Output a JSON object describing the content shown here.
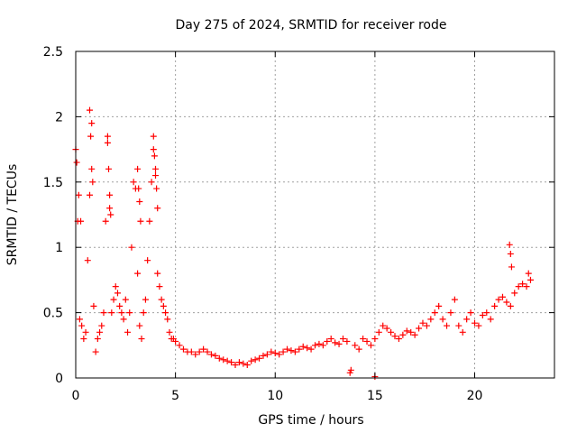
{
  "chart_data": {
    "type": "scatter",
    "title": "Day 275 of 2024, SRMTID for receiver rode",
    "xlabel": "GPS time / hours",
    "ylabel": "SRMTID / TECUs",
    "xlim": [
      0,
      24
    ],
    "ylim": [
      0,
      2.5
    ],
    "xticks": [
      0,
      5,
      10,
      15,
      20
    ],
    "xtick_labels": [
      "0",
      "5",
      "10",
      "15",
      "20"
    ],
    "yticks": [
      0,
      0.5,
      1,
      1.5,
      2,
      2.5
    ],
    "ytick_labels": [
      "0",
      "0.5",
      "1",
      "1.5",
      "2",
      "2.5"
    ],
    "grid": true,
    "marker": "+",
    "color": "#ff0000",
    "series": [
      {
        "name": "SRMTID",
        "x": [
          0.0,
          0.1,
          0.2,
          0.3,
          0.4,
          0.5,
          0.6,
          0.7,
          0.8,
          0.9,
          1.0,
          1.1,
          1.2,
          1.3,
          1.4,
          1.5,
          1.6,
          1.7,
          1.8,
          1.9,
          2.0,
          2.1,
          2.2,
          2.3,
          2.4,
          2.5,
          2.6,
          2.7,
          2.8,
          2.9,
          3.0,
          3.1,
          3.2,
          3.3,
          3.4,
          3.5,
          3.6,
          3.7,
          3.8,
          3.9,
          4.0,
          4.1,
          4.2,
          4.3,
          4.4,
          4.5,
          4.6,
          4.7,
          4.8,
          4.9,
          5.0,
          5.2,
          5.4,
          5.6,
          5.8,
          6.0,
          6.2,
          6.4,
          6.6,
          6.8,
          7.0,
          7.2,
          7.4,
          7.6,
          7.8,
          8.0,
          8.2,
          8.4,
          8.6,
          8.8,
          9.0,
          9.2,
          9.4,
          9.6,
          9.8,
          10.0,
          10.2,
          10.4,
          10.6,
          10.8,
          11.0,
          11.2,
          11.4,
          11.6,
          11.8,
          12.0,
          12.2,
          12.4,
          12.6,
          12.8,
          13.0,
          13.2,
          13.4,
          13.6,
          13.8,
          14.0,
          14.2,
          14.4,
          14.6,
          14.8,
          15.0,
          15.2,
          15.4,
          15.6,
          15.8,
          16.0,
          16.2,
          16.4,
          16.6,
          16.8,
          17.0,
          17.2,
          17.4,
          17.6,
          17.8,
          18.0,
          18.2,
          18.4,
          18.6,
          18.8,
          19.0,
          19.2,
          19.4,
          19.6,
          19.8,
          20.0,
          20.2,
          20.4,
          20.6,
          20.8,
          21.0,
          21.2,
          21.4,
          21.6,
          21.8,
          22.0,
          22.2,
          22.4,
          22.6,
          22.8,
          0.05,
          0.15,
          0.25,
          0.7,
          0.75,
          0.8,
          0.85,
          1.6,
          1.65,
          1.7,
          1.75,
          3.1,
          3.15,
          3.2,
          3.25,
          3.9,
          3.95,
          4.0,
          4.05,
          4.1,
          13.75,
          15.0,
          21.75,
          21.8,
          21.85,
          22.7
        ],
        "y": [
          1.75,
          1.2,
          0.45,
          0.4,
          0.3,
          0.35,
          0.9,
          1.4,
          1.95,
          0.55,
          0.2,
          0.3,
          0.35,
          0.4,
          0.5,
          1.2,
          1.8,
          1.3,
          0.5,
          0.6,
          0.7,
          0.65,
          0.55,
          0.5,
          0.45,
          0.6,
          0.35,
          0.5,
          1.0,
          1.5,
          1.45,
          0.8,
          0.4,
          0.3,
          0.5,
          0.6,
          0.9,
          1.2,
          1.5,
          1.75,
          1.6,
          0.8,
          0.7,
          0.6,
          0.55,
          0.5,
          0.45,
          0.35,
          0.3,
          0.3,
          0.28,
          0.25,
          0.22,
          0.2,
          0.2,
          0.18,
          0.2,
          0.22,
          0.2,
          0.18,
          0.17,
          0.15,
          0.14,
          0.13,
          0.12,
          0.1,
          0.12,
          0.11,
          0.1,
          0.13,
          0.14,
          0.15,
          0.17,
          0.18,
          0.2,
          0.19,
          0.18,
          0.2,
          0.22,
          0.21,
          0.2,
          0.22,
          0.24,
          0.23,
          0.22,
          0.25,
          0.26,
          0.25,
          0.28,
          0.3,
          0.27,
          0.26,
          0.3,
          0.28,
          0.06,
          0.25,
          0.22,
          0.3,
          0.28,
          0.25,
          0.3,
          0.35,
          0.4,
          0.38,
          0.35,
          0.32,
          0.3,
          0.33,
          0.36,
          0.35,
          0.33,
          0.38,
          0.42,
          0.4,
          0.45,
          0.5,
          0.55,
          0.45,
          0.4,
          0.5,
          0.6,
          0.4,
          0.35,
          0.45,
          0.5,
          0.42,
          0.4,
          0.48,
          0.5,
          0.45,
          0.55,
          0.6,
          0.62,
          0.58,
          0.55,
          0.65,
          0.7,
          0.72,
          0.7,
          0.75,
          1.65,
          1.4,
          1.2,
          2.05,
          1.85,
          1.6,
          1.5,
          1.85,
          1.6,
          1.4,
          1.25,
          1.6,
          1.45,
          1.35,
          1.2,
          1.85,
          1.7,
          1.55,
          1.45,
          1.3,
          0.04,
          0.01,
          1.02,
          0.95,
          0.85,
          0.8
        ]
      }
    ]
  }
}
